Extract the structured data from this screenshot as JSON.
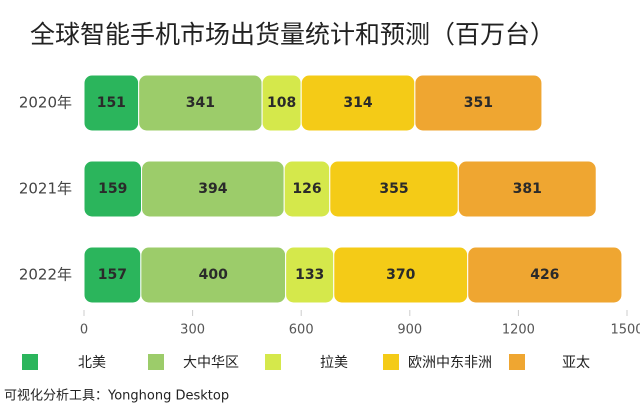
{
  "chart_data": {
    "type": "stacked-bar-horizontal",
    "title": "全球智能手机市场出货量统计和预测（百万台）",
    "categories": [
      "2020年",
      "2021年",
      "2022年"
    ],
    "series": [
      {
        "name": "北美",
        "color": "#2bb55c",
        "values": [
          151,
          159,
          157
        ]
      },
      {
        "name": "大中华区",
        "color": "#9ccc6a",
        "values": [
          341,
          394,
          400
        ]
      },
      {
        "name": "拉美",
        "color": "#d5e84b",
        "values": [
          108,
          126,
          133
        ]
      },
      {
        "name": "欧洲中东非洲",
        "color": "#f4cb17",
        "values": [
          314,
          355,
          370
        ]
      },
      {
        "name": "亚太",
        "color": "#efa631",
        "values": [
          351,
          381,
          426
        ]
      }
    ],
    "xlim": [
      0,
      1500
    ],
    "xticks": [
      0,
      300,
      600,
      900,
      1200,
      1500
    ],
    "footer": "可视化分析工具：Yonghong Desktop"
  }
}
